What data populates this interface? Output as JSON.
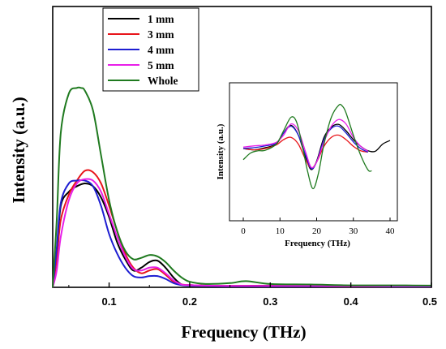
{
  "chart_data": [
    {
      "type": "line",
      "title": "",
      "xlabel": "Frequency (THz)",
      "ylabel": "Intensity (a.u.)",
      "xlim": [
        0.03,
        0.5
      ],
      "ylim": [
        0,
        1.0
      ],
      "x_ticks": [
        0.1,
        0.2,
        0.3,
        0.4,
        0.5
      ],
      "x_tick_labels": [
        "0.1",
        "0.2",
        "0.3",
        "0.4",
        "0.5"
      ],
      "y_ticks_shown": false,
      "grid": false,
      "legend_position": "top-left",
      "series": [
        {
          "name": "1 mm",
          "color": "#000000",
          "x": [
            0.03,
            0.035,
            0.04,
            0.05,
            0.06,
            0.07,
            0.08,
            0.09,
            0.1,
            0.11,
            0.12,
            0.13,
            0.14,
            0.15,
            0.16,
            0.17,
            0.18,
            0.19,
            0.2,
            0.22,
            0.25,
            0.3,
            0.35,
            0.4,
            0.45,
            0.5
          ],
          "y": [
            0.0,
            0.12,
            0.29,
            0.34,
            0.36,
            0.37,
            0.36,
            0.32,
            0.25,
            0.16,
            0.1,
            0.06,
            0.07,
            0.09,
            0.095,
            0.07,
            0.035,
            0.01,
            0.008,
            0.006,
            0.005,
            0.006,
            0.006,
            0.004,
            0.005,
            0.004
          ]
        },
        {
          "name": "3 mm",
          "color": "#e8141a",
          "x": [
            0.03,
            0.035,
            0.04,
            0.05,
            0.06,
            0.07,
            0.08,
            0.09,
            0.1,
            0.11,
            0.12,
            0.13,
            0.14,
            0.15,
            0.16,
            0.17,
            0.18,
            0.19,
            0.2,
            0.22,
            0.25,
            0.3,
            0.35,
            0.4,
            0.45,
            0.5
          ],
          "y": [
            0.0,
            0.1,
            0.24,
            0.33,
            0.38,
            0.415,
            0.41,
            0.37,
            0.29,
            0.2,
            0.12,
            0.07,
            0.05,
            0.06,
            0.065,
            0.045,
            0.02,
            0.01,
            0.008,
            0.006,
            0.005,
            0.005,
            0.005,
            0.004,
            0.004,
            0.004
          ]
        },
        {
          "name": "4 mm",
          "color": "#1e1ed2",
          "x": [
            0.03,
            0.035,
            0.04,
            0.05,
            0.06,
            0.07,
            0.08,
            0.09,
            0.1,
            0.11,
            0.12,
            0.13,
            0.14,
            0.15,
            0.16,
            0.17,
            0.18,
            0.19,
            0.2,
            0.22,
            0.25,
            0.3,
            0.35,
            0.4,
            0.45,
            0.5
          ],
          "y": [
            0.0,
            0.14,
            0.3,
            0.37,
            0.38,
            0.38,
            0.36,
            0.29,
            0.19,
            0.12,
            0.07,
            0.04,
            0.035,
            0.04,
            0.04,
            0.03,
            0.015,
            0.008,
            0.006,
            0.005,
            0.004,
            0.004,
            0.004,
            0.004,
            0.003,
            0.003
          ]
        },
        {
          "name": "5 mm",
          "color": "#e81ee8",
          "x": [
            0.03,
            0.035,
            0.04,
            0.05,
            0.06,
            0.07,
            0.08,
            0.09,
            0.1,
            0.11,
            0.12,
            0.13,
            0.14,
            0.15,
            0.16,
            0.17,
            0.18,
            0.19,
            0.2,
            0.22,
            0.25,
            0.3,
            0.35,
            0.4,
            0.45,
            0.5
          ],
          "y": [
            0.0,
            0.06,
            0.18,
            0.31,
            0.37,
            0.385,
            0.38,
            0.34,
            0.26,
            0.18,
            0.11,
            0.065,
            0.06,
            0.07,
            0.07,
            0.05,
            0.025,
            0.01,
            0.008,
            0.006,
            0.005,
            0.005,
            0.005,
            0.004,
            0.004,
            0.004
          ]
        },
        {
          "name": "Whole",
          "color": "#1f7a1f",
          "x": [
            0.03,
            0.035,
            0.04,
            0.05,
            0.06,
            0.065,
            0.07,
            0.08,
            0.09,
            0.1,
            0.11,
            0.12,
            0.13,
            0.14,
            0.15,
            0.16,
            0.17,
            0.18,
            0.19,
            0.2,
            0.22,
            0.25,
            0.27,
            0.3,
            0.35,
            0.4,
            0.45,
            0.5
          ],
          "y": [
            0.0,
            0.24,
            0.55,
            0.69,
            0.71,
            0.71,
            0.7,
            0.63,
            0.47,
            0.31,
            0.2,
            0.13,
            0.1,
            0.105,
            0.115,
            0.11,
            0.09,
            0.06,
            0.035,
            0.02,
            0.012,
            0.015,
            0.022,
            0.012,
            0.01,
            0.007,
            0.007,
            0.006
          ]
        }
      ]
    },
    {
      "type": "line",
      "title": "",
      "xlabel": "Frequency (THz)",
      "ylabel": "Intensity (a.u.)",
      "xlim": [
        -3,
        44
      ],
      "ylim": [
        -1.0,
        1.0
      ],
      "x_ticks": [
        0,
        10,
        20,
        30,
        40
      ],
      "x_tick_labels": [
        "0",
        "10",
        "20",
        "30",
        "40"
      ],
      "y_ticks_shown": false,
      "grid": false,
      "legend_position": "none",
      "series": [
        {
          "color": "#000000",
          "x": [
            0,
            3,
            6,
            9,
            11,
            13,
            15,
            17,
            18.5,
            20,
            22,
            24,
            26,
            28,
            30,
            32,
            34,
            36,
            38,
            40
          ],
          "y": [
            0.0,
            -0.03,
            0.02,
            0.1,
            0.35,
            0.52,
            0.3,
            -0.2,
            -0.47,
            -0.28,
            0.25,
            0.48,
            0.54,
            0.4,
            0.2,
            0.05,
            -0.05,
            -0.06,
            0.1,
            0.18
          ]
        },
        {
          "color": "#e8141a",
          "x": [
            0,
            3,
            6,
            9,
            11,
            13,
            15,
            17,
            18.5,
            20,
            22,
            24,
            26,
            28,
            30,
            32,
            34
          ],
          "y": [
            0.0,
            -0.03,
            0.0,
            0.08,
            0.2,
            0.25,
            0.1,
            -0.25,
            -0.44,
            -0.3,
            0.05,
            0.25,
            0.3,
            0.2,
            0.05,
            -0.05,
            -0.08
          ]
        },
        {
          "color": "#1e1ed2",
          "x": [
            0,
            3,
            6,
            9,
            11,
            13,
            15,
            17,
            18.5,
            20,
            22,
            24,
            26,
            28,
            30,
            32,
            34
          ],
          "y": [
            0.0,
            0.02,
            0.06,
            0.12,
            0.35,
            0.5,
            0.3,
            -0.15,
            -0.45,
            -0.3,
            0.2,
            0.45,
            0.5,
            0.35,
            0.15,
            0.0,
            -0.08
          ]
        },
        {
          "color": "#e81ee8",
          "x": [
            0,
            3,
            6,
            9,
            11,
            13,
            15,
            17,
            18.5,
            20,
            22,
            24,
            26,
            28,
            30,
            32,
            34
          ],
          "y": [
            0.03,
            0.06,
            0.08,
            0.14,
            0.3,
            0.55,
            0.4,
            -0.08,
            -0.42,
            -0.3,
            0.15,
            0.5,
            0.65,
            0.55,
            0.25,
            0.05,
            -0.06
          ]
        },
        {
          "color": "#1f7a1f",
          "x": [
            0,
            2,
            4,
            6,
            9,
            11,
            13,
            14.5,
            16,
            17.5,
            19,
            20.5,
            22,
            24,
            26,
            27,
            28,
            30,
            32,
            34,
            35
          ],
          "y": [
            -0.25,
            -0.1,
            -0.05,
            -0.04,
            0.1,
            0.4,
            0.7,
            0.6,
            0.1,
            -0.5,
            -0.9,
            -0.55,
            0.1,
            0.7,
            0.97,
            0.95,
            0.8,
            0.3,
            -0.15,
            -0.48,
            -0.5
          ]
        }
      ]
    }
  ]
}
